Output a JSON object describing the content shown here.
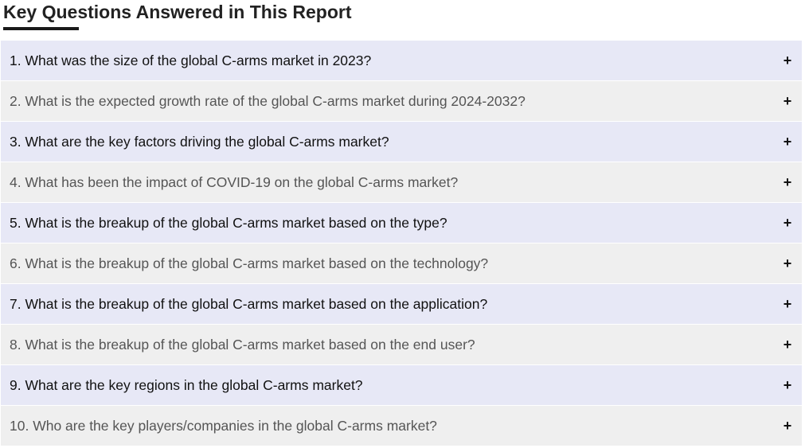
{
  "page": {
    "heading": "Key Questions Answered in This Report"
  },
  "colors": {
    "odd_row_bg": "#e7e8f6",
    "even_row_bg": "#efefef",
    "underline": "#1a1a1a"
  },
  "faq": {
    "toggle_icon": "plus-icon",
    "items": [
      {
        "question": "1. What was the size of the global C-arms market in 2023?",
        "toggle": "+"
      },
      {
        "question": "2. What is the expected growth rate of the global C-arms market during 2024-2032?",
        "toggle": "+"
      },
      {
        "question": "3. What are the key factors driving the global C-arms market?",
        "toggle": "+"
      },
      {
        "question": "4. What has been the impact of COVID-19 on the global C-arms market?",
        "toggle": "+"
      },
      {
        "question": "5. What is the breakup of the global C-arms market based on the type?",
        "toggle": "+"
      },
      {
        "question": "6. What is the breakup of the global C-arms market based on the technology?",
        "toggle": "+"
      },
      {
        "question": "7. What is the breakup of the global C-arms market based on the application?",
        "toggle": "+"
      },
      {
        "question": "8. What is the breakup of the global C-arms market based on the end user?",
        "toggle": "+"
      },
      {
        "question": "9. What are the key regions in the global C-arms market?",
        "toggle": "+"
      },
      {
        "question": "10. Who are the key players/companies in the global C-arms market?",
        "toggle": "+"
      }
    ]
  }
}
